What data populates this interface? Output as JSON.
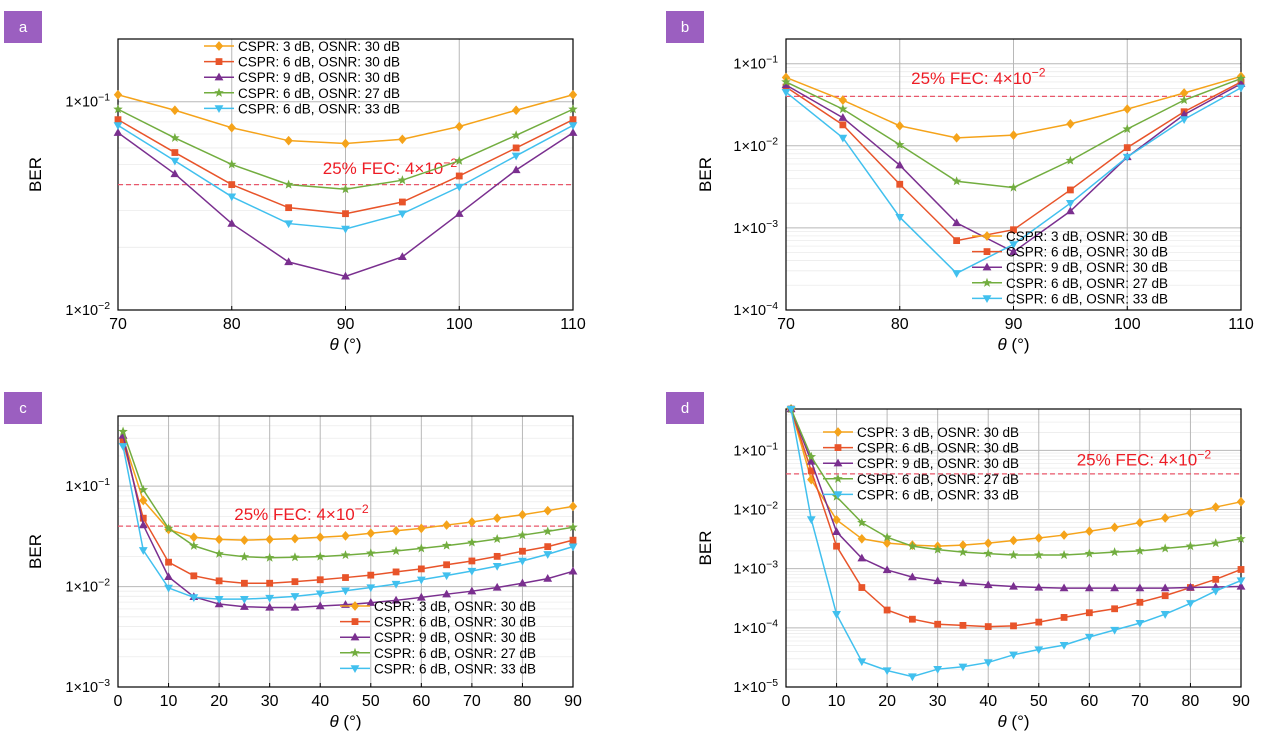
{
  "colors": {
    "badge": "#9b5fc0",
    "fec_line": "#e8576a",
    "fec_text": "#ee1c25",
    "grid_major": "#b8b8b8",
    "grid_minor": "#ececec",
    "axis": "#000000",
    "series": [
      "#f5a31a",
      "#e8542a",
      "#7a2f8f",
      "#72ad3f",
      "#41c0ee"
    ]
  },
  "series_markers": [
    "diamond",
    "square",
    "triangle-up",
    "star",
    "triangle-down"
  ],
  "chart_data": [
    {
      "panel": "a",
      "type": "line",
      "xlabel_symbol": "θ",
      "xlabel_unit": " (°)",
      "ylabel": "BER",
      "yscale": "log",
      "xlim": [
        70,
        110
      ],
      "ylim": [
        0.01,
        0.2
      ],
      "xticks": [
        70,
        80,
        90,
        100,
        110
      ],
      "ytick_labels": [
        {
          "value": 0.1,
          "mant": "1×10",
          "exp": "−1"
        },
        {
          "value": 0.01,
          "mant": "1×10",
          "exp": "−2"
        }
      ],
      "grid": true,
      "legend_position": "top-center",
      "threshold": {
        "value": 0.04,
        "prefix": "25% FEC: 4×10",
        "exp": "−2",
        "label_x": 88,
        "label_y": 0.045
      },
      "x": [
        70,
        75,
        80,
        85,
        90,
        95,
        100,
        105,
        110
      ],
      "series": [
        {
          "name": "CSPR: 3 dB, OSNR: 30 dB",
          "values": [
            0.108,
            0.091,
            0.075,
            0.065,
            0.063,
            0.066,
            0.076,
            0.091,
            0.108
          ]
        },
        {
          "name": "CSPR: 6 dB, OSNR: 30 dB",
          "values": [
            0.082,
            0.057,
            0.04,
            0.031,
            0.029,
            0.033,
            0.044,
            0.06,
            0.082
          ]
        },
        {
          "name": "CSPR: 9 dB, OSNR: 30 dB",
          "values": [
            0.071,
            0.045,
            0.026,
            0.017,
            0.0145,
            0.018,
            0.029,
            0.047,
            0.071
          ]
        },
        {
          "name": "CSPR: 6 dB, OSNR: 27 dB",
          "values": [
            0.092,
            0.067,
            0.05,
            0.04,
            0.038,
            0.042,
            0.052,
            0.069,
            0.092
          ]
        },
        {
          "name": "CSPR: 6 dB, OSNR: 33 dB",
          "values": [
            0.077,
            0.052,
            0.035,
            0.026,
            0.0245,
            0.029,
            0.039,
            0.055,
            0.077
          ]
        }
      ]
    },
    {
      "panel": "b",
      "type": "line",
      "xlabel_symbol": "θ",
      "xlabel_unit": " (°)",
      "ylabel": "BER",
      "yscale": "log",
      "xlim": [
        70,
        110
      ],
      "ylim": [
        0.0001,
        0.2
      ],
      "xticks": [
        70,
        80,
        90,
        100,
        110
      ],
      "ytick_labels": [
        {
          "value": 0.1,
          "mant": "1×10",
          "exp": "−1"
        },
        {
          "value": 0.01,
          "mant": "1×10",
          "exp": "−2"
        },
        {
          "value": 0.001,
          "mant": "1×10",
          "exp": "−3"
        },
        {
          "value": 0.0001,
          "mant": "1×10",
          "exp": "−4"
        }
      ],
      "grid": true,
      "legend_position": "bottom-right",
      "threshold": {
        "value": 0.04,
        "prefix": "25% FEC: 4×10",
        "exp": "−2",
        "label_x": 81,
        "label_y": 0.057
      },
      "x": [
        70,
        75,
        80,
        85,
        90,
        95,
        100,
        105,
        110
      ],
      "series": [
        {
          "name": "CSPR: 3 dB, OSNR: 30 dB",
          "values": [
            0.068,
            0.036,
            0.0175,
            0.0125,
            0.0135,
            0.0185,
            0.028,
            0.044,
            0.07
          ]
        },
        {
          "name": "CSPR: 6 dB, OSNR: 30 dB",
          "values": [
            0.052,
            0.018,
            0.0034,
            0.0007,
            0.00095,
            0.0029,
            0.0095,
            0.026,
            0.06
          ]
        },
        {
          "name": "CSPR: 9 dB, OSNR: 30 dB",
          "values": [
            0.055,
            0.022,
            0.0058,
            0.00115,
            0.00051,
            0.0016,
            0.0073,
            0.024,
            0.057
          ]
        },
        {
          "name": "CSPR: 6 dB, OSNR: 27 dB",
          "values": [
            0.06,
            0.028,
            0.0103,
            0.0037,
            0.0031,
            0.0066,
            0.016,
            0.036,
            0.066
          ]
        },
        {
          "name": "CSPR: 6 dB, OSNR: 33 dB",
          "values": [
            0.045,
            0.0125,
            0.00135,
            0.00028,
            0.00063,
            0.002,
            0.0073,
            0.021,
            0.051
          ]
        }
      ]
    },
    {
      "panel": "c",
      "type": "line",
      "xlabel_symbol": "θ",
      "xlabel_unit": " (°)",
      "ylabel": "BER",
      "yscale": "log",
      "xlim": [
        0,
        90
      ],
      "ylim": [
        0.001,
        0.5
      ],
      "xticks": [
        0,
        10,
        20,
        30,
        40,
        50,
        60,
        70,
        80,
        90
      ],
      "ytick_labels": [
        {
          "value": 0.1,
          "mant": "1×10",
          "exp": "−1"
        },
        {
          "value": 0.01,
          "mant": "1×10",
          "exp": "−2"
        },
        {
          "value": 0.001,
          "mant": "1×10",
          "exp": "−3"
        }
      ],
      "grid": true,
      "legend_position": "bottom-right",
      "threshold": {
        "value": 0.04,
        "prefix": "25% FEC: 4×10",
        "exp": "−2",
        "label_x": 23,
        "label_y": 0.046
      },
      "x": [
        1,
        5,
        10,
        15,
        20,
        25,
        30,
        35,
        40,
        45,
        50,
        55,
        60,
        65,
        70,
        75,
        80,
        85,
        90
      ],
      "series": [
        {
          "name": "CSPR: 3 dB, OSNR: 30 dB",
          "values": [
            0.3,
            0.072,
            0.037,
            0.031,
            0.0295,
            0.029,
            0.0295,
            0.03,
            0.031,
            0.032,
            0.034,
            0.036,
            0.038,
            0.041,
            0.044,
            0.048,
            0.052,
            0.057,
            0.063
          ]
        },
        {
          "name": "CSPR: 6 dB, OSNR: 30 dB",
          "values": [
            0.28,
            0.048,
            0.0175,
            0.0128,
            0.0114,
            0.0108,
            0.0108,
            0.0112,
            0.0117,
            0.0123,
            0.013,
            0.014,
            0.015,
            0.0165,
            0.018,
            0.02,
            0.0225,
            0.025,
            0.029
          ]
        },
        {
          "name": "CSPR: 9 dB, OSNR: 30 dB",
          "values": [
            0.32,
            0.041,
            0.0125,
            0.0079,
            0.0067,
            0.0063,
            0.0062,
            0.0062,
            0.0064,
            0.0066,
            0.0069,
            0.0073,
            0.0078,
            0.0084,
            0.009,
            0.0098,
            0.0108,
            0.012,
            0.0142
          ]
        },
        {
          "name": "CSPR: 6 dB, OSNR: 27 dB",
          "values": [
            0.35,
            0.092,
            0.038,
            0.0255,
            0.0212,
            0.0198,
            0.0194,
            0.0196,
            0.0199,
            0.0206,
            0.0215,
            0.0226,
            0.024,
            0.0256,
            0.0275,
            0.0298,
            0.0325,
            0.0355,
            0.039
          ]
        },
        {
          "name": "CSPR: 6 dB, OSNR: 33 dB",
          "values": [
            0.25,
            0.023,
            0.0097,
            0.0078,
            0.0075,
            0.0075,
            0.0077,
            0.008,
            0.0085,
            0.0091,
            0.0098,
            0.0106,
            0.0117,
            0.0129,
            0.0143,
            0.016,
            0.018,
            0.021,
            0.025
          ]
        }
      ]
    },
    {
      "panel": "d",
      "type": "line",
      "xlabel_symbol": "θ",
      "xlabel_unit": " (°)",
      "ylabel": "BER",
      "yscale": "log",
      "xlim": [
        0,
        90
      ],
      "ylim": [
        1e-05,
        0.5
      ],
      "xticks": [
        0,
        10,
        20,
        30,
        40,
        50,
        60,
        70,
        80,
        90
      ],
      "ytick_labels": [
        {
          "value": 0.1,
          "mant": "1×10",
          "exp": "−1"
        },
        {
          "value": 0.01,
          "mant": "1×10",
          "exp": "−2"
        },
        {
          "value": 0.001,
          "mant": "1×10",
          "exp": "−3"
        },
        {
          "value": 0.0001,
          "mant": "1×10",
          "exp": "−4"
        },
        {
          "value": 1e-05,
          "mant": "1×10",
          "exp": "−5"
        }
      ],
      "grid": true,
      "legend_position": "top-left",
      "threshold": {
        "value": 0.04,
        "prefix": "25% FEC: 4×10",
        "exp": "−2",
        "label_x": 57.5,
        "label_y": 0.055
      },
      "x": [
        1,
        5,
        10,
        15,
        20,
        25,
        30,
        35,
        40,
        45,
        50,
        55,
        60,
        65,
        70,
        75,
        80,
        85,
        90
      ],
      "series": [
        {
          "name": "CSPR: 3 dB, OSNR: 30 dB",
          "values": [
            0.5,
            0.032,
            0.0067,
            0.0032,
            0.0027,
            0.0025,
            0.0024,
            0.0025,
            0.0027,
            0.003,
            0.0033,
            0.0037,
            0.0043,
            0.005,
            0.006,
            0.0072,
            0.0088,
            0.011,
            0.0135
          ]
        },
        {
          "name": "CSPR: 6 dB, OSNR: 30 dB",
          "values": [
            0.5,
            0.045,
            0.0024,
            0.00048,
            0.0002,
            0.00014,
            0.000115,
            0.00011,
            0.000105,
            0.000108,
            0.000125,
            0.00015,
            0.00018,
            0.00021,
            0.00027,
            0.00035,
            0.00048,
            0.00066,
            0.00097
          ]
        },
        {
          "name": "CSPR: 9 dB, OSNR: 30 dB",
          "values": [
            0.5,
            0.065,
            0.0042,
            0.0015,
            0.00095,
            0.00072,
            0.00062,
            0.00057,
            0.00053,
            0.0005,
            0.00048,
            0.00047,
            0.00047,
            0.00047,
            0.00047,
            0.00047,
            0.00048,
            0.00049,
            0.0005
          ]
        },
        {
          "name": "CSPR: 6 dB, OSNR: 27 dB",
          "values": [
            0.5,
            0.078,
            0.0165,
            0.006,
            0.0034,
            0.0024,
            0.0021,
            0.0019,
            0.0018,
            0.0017,
            0.0017,
            0.0017,
            0.0018,
            0.0019,
            0.002,
            0.0022,
            0.0024,
            0.0027,
            0.0032
          ]
        },
        {
          "name": "CSPR: 6 dB, OSNR: 33 dB",
          "values": [
            0.5,
            0.0068,
            0.00017,
            2.7e-05,
            1.9e-05,
            1.5e-05,
            2e-05,
            2.2e-05,
            2.6e-05,
            3.5e-05,
            4.3e-05,
            5.1e-05,
            7e-05,
            9.2e-05,
            0.00012,
            0.00017,
            0.00026,
            0.00042,
            0.00063
          ]
        }
      ]
    }
  ]
}
